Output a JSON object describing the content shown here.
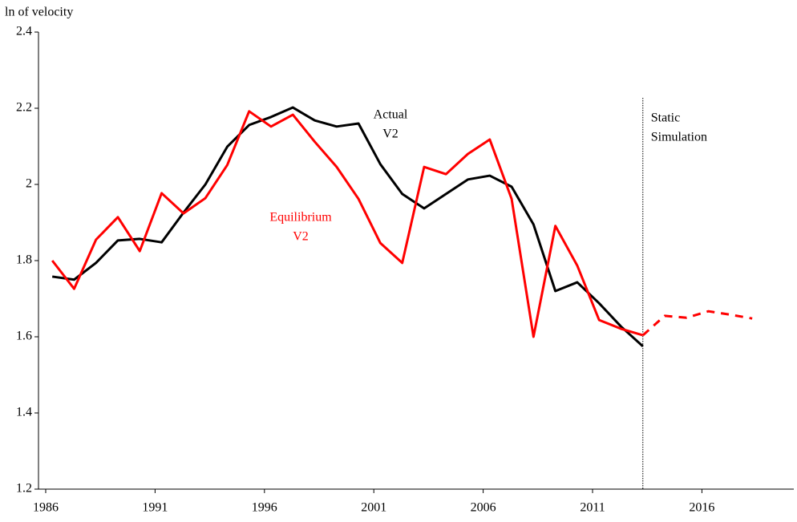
{
  "chart_data": {
    "type": "line",
    "ylabel": "ln of velocity",
    "x": [
      1986.3,
      1987.3,
      1988.3,
      1989.3,
      1990.3,
      1991.3,
      1992.3,
      1993.3,
      1994.3,
      1995.3,
      1996.3,
      1997.3,
      1998.3,
      1999.3,
      2000.3,
      2001.3,
      2002.3,
      2003.3,
      2004.3,
      2005.3,
      2006.3,
      2007.3,
      2008.3,
      2009.3,
      2010.3,
      2011.3,
      2012.3,
      2013.3,
      2014.3,
      2015.3,
      2016.3,
      2017.3,
      2018.3
    ],
    "series": [
      {
        "name_lines": [
          "Actual",
          "V2"
        ],
        "color": "#000000",
        "values": [
          1.758,
          1.75,
          1.794,
          1.853,
          1.857,
          1.848,
          1.926,
          2.0,
          2.099,
          2.156,
          2.177,
          2.202,
          2.168,
          2.152,
          2.16,
          2.053,
          1.975,
          1.937,
          1.975,
          2.013,
          2.023,
          1.994,
          1.895,
          1.72,
          1.743,
          1.688,
          1.627,
          1.575,
          null,
          null,
          null,
          null,
          null
        ]
      },
      {
        "name_lines": [
          "Equilibrium",
          "V2"
        ],
        "color": "#ff0000",
        "values": [
          1.8,
          1.726,
          1.855,
          1.914,
          1.825,
          1.977,
          1.924,
          1.964,
          2.051,
          2.192,
          2.152,
          2.183,
          2.112,
          2.046,
          1.962,
          1.846,
          1.794,
          2.046,
          2.027,
          2.08,
          2.118,
          1.962,
          1.6,
          1.891,
          1.787,
          1.644,
          1.621,
          1.604,
          1.655,
          1.65,
          1.667,
          1.658,
          1.648
        ]
      }
    ],
    "divider_x": 2013.3,
    "divider_label_lines": [
      "Static",
      "Simulation"
    ],
    "xlim": [
      1985.67,
      2020.2
    ],
    "xticks": [
      1986,
      1991,
      1996,
      2001,
      2006,
      2011,
      2016
    ],
    "ylim": [
      1.2,
      2.4
    ],
    "yticks": [
      1.2,
      1.4,
      1.6,
      1.8,
      2,
      2.2,
      2.4
    ]
  }
}
